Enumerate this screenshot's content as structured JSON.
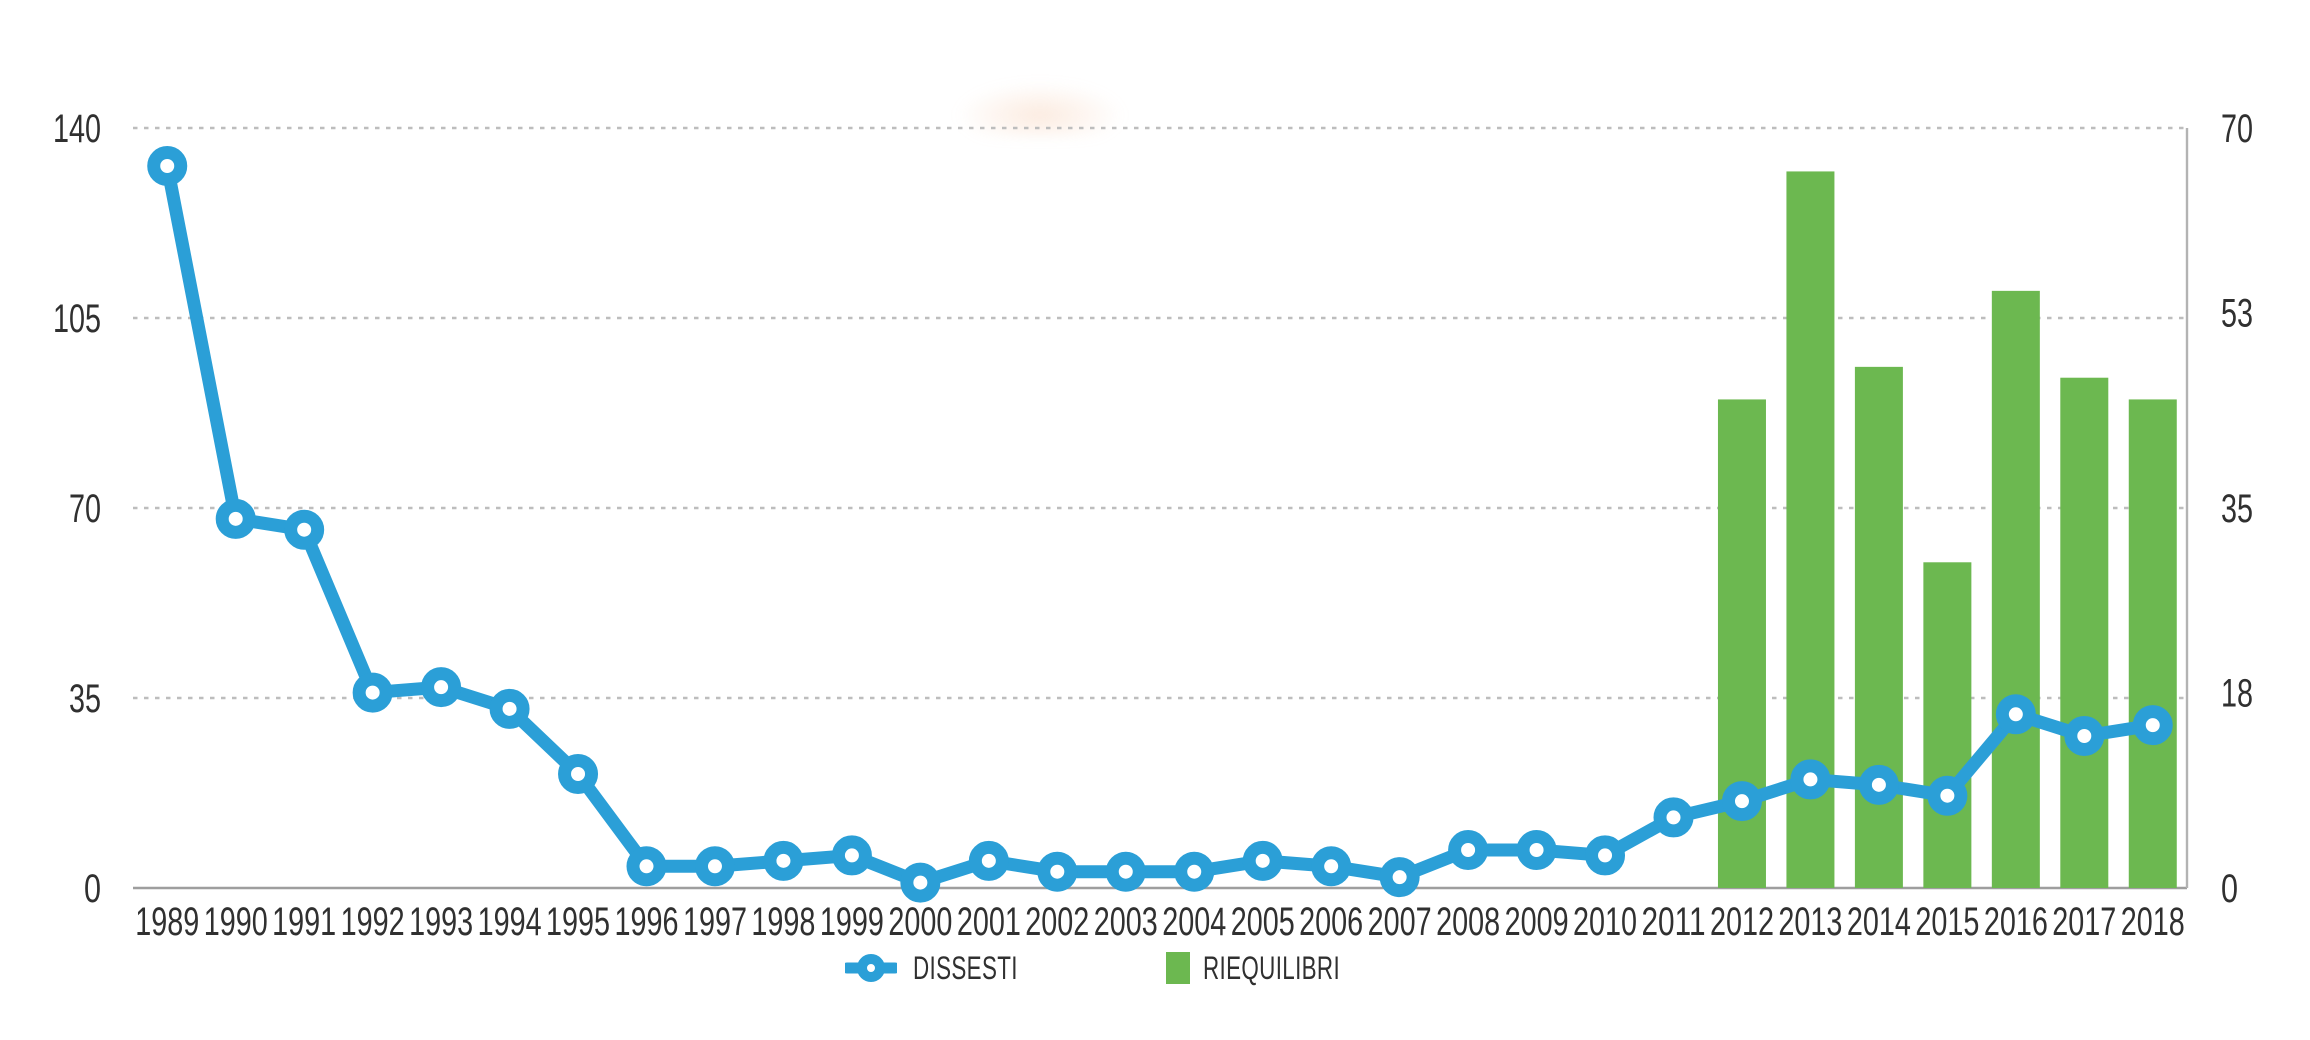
{
  "colors": {
    "line": "#2b9fd7",
    "bar": "#6cb850",
    "text": "#303030",
    "grid_dotted": "#bdbdbd",
    "baseline": "#9e9e9e",
    "right_border": "#b3b3b3",
    "marker_fill": "#ffffff"
  },
  "legend": {
    "dissesti_label": "DISSESTI",
    "riequilibri_label": "RIEQUILIBRI"
  },
  "chart_data": {
    "type": "combo-line-bar",
    "title": "",
    "categories": [
      "1989",
      "1990",
      "1991",
      "1992",
      "1993",
      "1994",
      "1995",
      "1996",
      "1997",
      "1998",
      "1999",
      "2000",
      "2001",
      "2002",
      "2003",
      "2004",
      "2005",
      "2006",
      "2007",
      "2008",
      "2009",
      "2010",
      "2011",
      "2012",
      "2013",
      "2014",
      "2015",
      "2016",
      "2017",
      "2018"
    ],
    "series": [
      {
        "name": "DISSESTI",
        "type": "line",
        "axis": "left",
        "color": "#2b9fd7",
        "values": [
          133,
          68,
          66,
          36,
          37,
          33,
          21,
          4,
          4,
          5,
          6,
          1,
          5,
          3,
          3,
          3,
          5,
          4,
          2,
          7,
          7,
          6,
          13,
          16,
          20,
          19,
          17,
          32,
          28,
          30
        ]
      },
      {
        "name": "RIEQUILIBRI",
        "type": "bar",
        "axis": "right",
        "color": "#6cb850",
        "values": [
          null,
          null,
          null,
          null,
          null,
          null,
          null,
          null,
          null,
          null,
          null,
          null,
          null,
          null,
          null,
          null,
          null,
          null,
          null,
          null,
          null,
          null,
          null,
          45,
          66,
          48,
          30,
          55,
          47,
          45
        ]
      }
    ],
    "left_axis": {
      "range": [
        0,
        140
      ],
      "ticks": [
        0,
        35,
        70,
        105,
        140
      ]
    },
    "right_axis": {
      "range": [
        0,
        70
      ],
      "ticks": [
        0,
        18,
        35,
        53,
        70
      ]
    },
    "grid": "horizontal-dotted",
    "legend_position": "bottom"
  }
}
